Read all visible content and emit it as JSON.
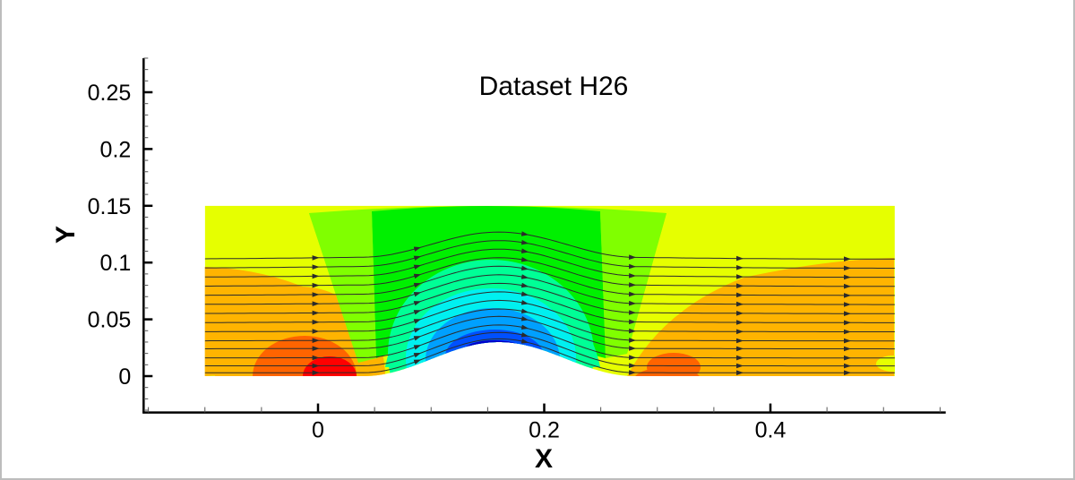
{
  "chart_data": {
    "type": "heatmap",
    "subtype": "contour-with-streamlines",
    "title": "Dataset H26",
    "xlabel": "X",
    "ylabel": "Y",
    "xlim": [
      -0.155,
      0.555
    ],
    "ylim": [
      -0.032,
      0.28
    ],
    "x_ticks": [
      0,
      0.2,
      0.4
    ],
    "x_tick_labels": [
      "0",
      "0.2",
      "0.4"
    ],
    "x_minor_step": 0.05,
    "y_ticks": [
      0,
      0.05,
      0.1,
      0.15,
      0.2,
      0.25
    ],
    "y_tick_labels": [
      "0",
      "0.05",
      "0.1",
      "0.15",
      "0.2",
      "0.25"
    ],
    "y_minor_step": 0.01,
    "grid": false,
    "legend": "none",
    "domain": {
      "x_min": -0.1,
      "x_max": 0.51,
      "y_min": 0,
      "y_max": 0.15
    },
    "bump": {
      "x_start": 0.04,
      "x_end": 0.28,
      "peak_x": 0.155,
      "peak_y": 0.03
    },
    "contour_levels": [
      {
        "name": "level-1-min",
        "color": "#0000c8"
      },
      {
        "name": "level-2",
        "color": "#0050ff"
      },
      {
        "name": "level-3",
        "color": "#00a0ff"
      },
      {
        "name": "level-4",
        "color": "#00f0f0"
      },
      {
        "name": "level-5",
        "color": "#00ff96"
      },
      {
        "name": "level-6",
        "color": "#00f000"
      },
      {
        "name": "level-7",
        "color": "#80ff00"
      },
      {
        "name": "level-8-freestream",
        "color": "#e6ff00"
      },
      {
        "name": "level-9",
        "color": "#ffb400"
      },
      {
        "name": "level-10",
        "color": "#ff6400"
      },
      {
        "name": "level-11-max",
        "color": "#ff0000"
      }
    ],
    "streamlines": {
      "count": 14,
      "start_y": [
        0.003,
        0.009,
        0.016,
        0.024,
        0.031,
        0.039,
        0.047,
        0.055,
        0.063,
        0.071,
        0.079,
        0.087,
        0.095,
        0.103
      ],
      "color": "#2b2b2b",
      "arrow_x": [
        -0.0,
        0.09,
        0.185,
        0.28,
        0.375,
        0.47
      ]
    }
  }
}
